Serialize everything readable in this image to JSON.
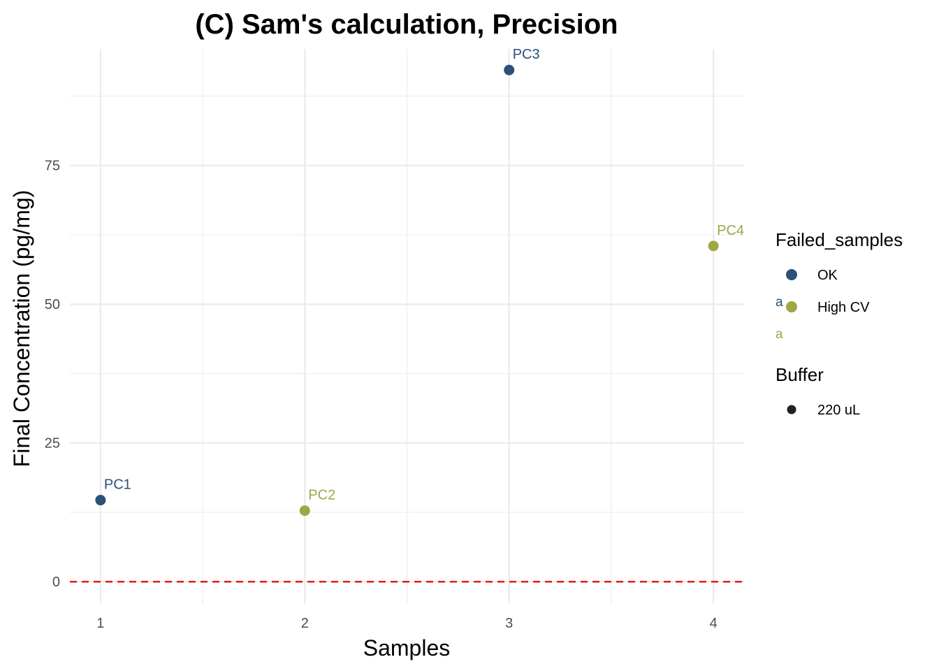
{
  "chart_data": {
    "type": "scatter",
    "title": "(C) Sam's calculation, Precision",
    "xlabel": "Samples",
    "ylabel": "Final Concentration (pg/mg)",
    "xlim": [
      0.85,
      4.15
    ],
    "ylim": [
      -4,
      96
    ],
    "x_ticks": [
      1,
      2,
      3,
      4
    ],
    "x_tick_labels": [
      "1",
      "2",
      "3",
      "4"
    ],
    "y_ticks": [
      0,
      25,
      50,
      75
    ],
    "y_tick_labels": [
      "0",
      "25",
      "50",
      "75"
    ],
    "grid": true,
    "reference_line": {
      "y": 0,
      "color": "#e41a1c",
      "style": "dashed"
    },
    "points": [
      {
        "x": 1,
        "y": 14.7,
        "label": "PC1",
        "status": "OK"
      },
      {
        "x": 2,
        "y": 12.8,
        "label": "PC2",
        "status": "High CV"
      },
      {
        "x": 3,
        "y": 92.2,
        "label": "PC3",
        "status": "OK"
      },
      {
        "x": 4,
        "y": 60.5,
        "label": "PC4",
        "status": "High CV"
      }
    ],
    "colors": {
      "OK": "#2b5079",
      "High CV": "#9fa645",
      "Buffer": "#222222"
    },
    "legend_position": "right",
    "legends": [
      {
        "title": "Failed_samples",
        "entries": [
          {
            "label": "OK",
            "key": "OK"
          },
          {
            "label": "High CV",
            "key": "High CV"
          }
        ]
      },
      {
        "title": "Buffer",
        "entries": [
          {
            "label": "220 uL",
            "key": "Buffer"
          }
        ]
      }
    ],
    "legend_key_text": "a"
  }
}
